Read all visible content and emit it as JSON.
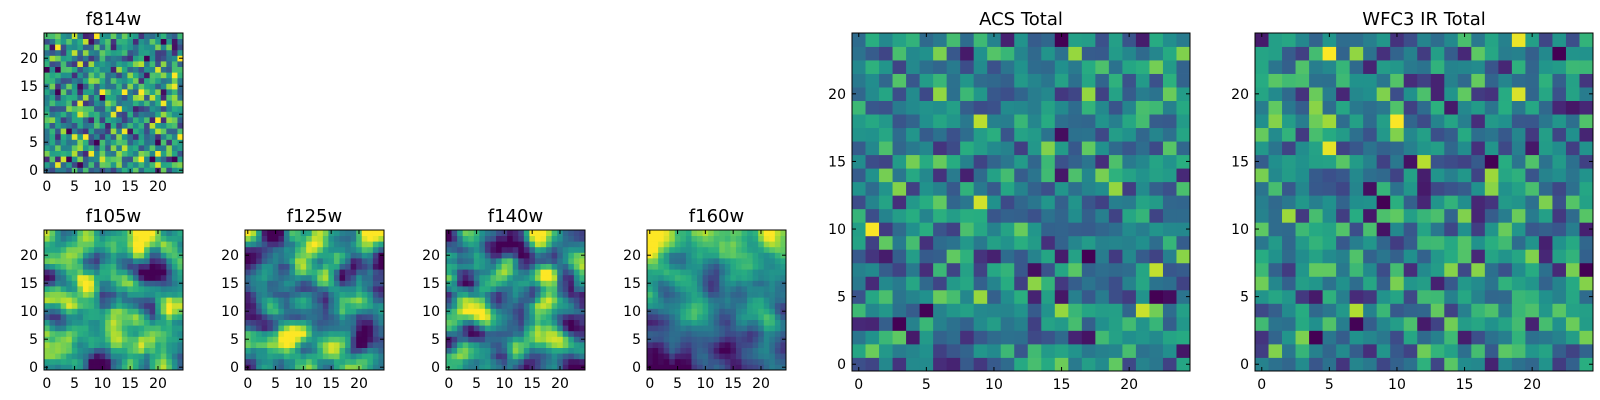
{
  "chart_data": [
    {
      "type": "heatmap",
      "panel": "f814w",
      "title": "f814w",
      "xlabel": "",
      "ylabel": "",
      "grid_size": 25,
      "xlim": [
        0,
        25
      ],
      "ylim": [
        0,
        25
      ],
      "xticks": [
        0,
        5,
        10,
        15,
        20
      ],
      "yticks": [
        0,
        5,
        10,
        15,
        20
      ],
      "colormap": "viridis",
      "texture": "fine pixel noise",
      "seed": 11
    },
    {
      "type": "heatmap",
      "panel": "f105w",
      "title": "f105w",
      "xlabel": "",
      "ylabel": "",
      "grid_size": 25,
      "xlim": [
        0,
        25
      ],
      "ylim": [
        0,
        25
      ],
      "xticks": [
        0,
        5,
        10,
        15,
        20
      ],
      "yticks": [
        0,
        5,
        10,
        15,
        20
      ],
      "colormap": "viridis",
      "texture": "smooth blotches",
      "seed": 23
    },
    {
      "type": "heatmap",
      "panel": "f125w",
      "title": "f125w",
      "xlabel": "",
      "ylabel": "",
      "grid_size": 25,
      "xlim": [
        0,
        25
      ],
      "ylim": [
        0,
        25
      ],
      "xticks": [
        0,
        5,
        10,
        15,
        20
      ],
      "yticks": [
        0,
        5,
        10,
        15,
        20
      ],
      "colormap": "viridis",
      "texture": "smooth blotches",
      "seed": 37
    },
    {
      "type": "heatmap",
      "panel": "f140w",
      "title": "f140w",
      "xlabel": "",
      "ylabel": "",
      "grid_size": 25,
      "xlim": [
        0,
        25
      ],
      "ylim": [
        0,
        25
      ],
      "xticks": [
        0,
        5,
        10,
        15,
        20
      ],
      "yticks": [
        0,
        5,
        10,
        15,
        20
      ],
      "colormap": "viridis",
      "texture": "smooth blotches",
      "seed": 41
    },
    {
      "type": "heatmap",
      "panel": "f160w",
      "title": "f160w",
      "xlabel": "",
      "ylabel": "",
      "grid_size": 25,
      "xlim": [
        0,
        25
      ],
      "ylim": [
        0,
        25
      ],
      "xticks": [
        0,
        5,
        10,
        15,
        20
      ],
      "yticks": [
        0,
        5,
        10,
        15,
        20
      ],
      "colormap": "viridis",
      "texture": "smooth, brighter at top",
      "seed": 53
    },
    {
      "type": "heatmap",
      "panel": "acs-total",
      "title": "ACS Total",
      "xlabel": "",
      "ylabel": "",
      "grid_size": 25,
      "xlim": [
        0,
        25
      ],
      "ylim": [
        0,
        25
      ],
      "xticks": [
        0,
        5,
        10,
        15,
        20
      ],
      "yticks": [
        0,
        5,
        10,
        15,
        20
      ],
      "colormap": "viridis",
      "texture": "pixel noise, mostly green",
      "seed": 67
    },
    {
      "type": "heatmap",
      "panel": "wfc3-ir-total",
      "title": "WFC3 IR Total",
      "xlabel": "",
      "ylabel": "",
      "grid_size": 25,
      "xlim": [
        0,
        25
      ],
      "ylim": [
        0,
        25
      ],
      "xticks": [
        0,
        5,
        10,
        15,
        20
      ],
      "yticks": [
        0,
        5,
        10,
        15,
        20
      ],
      "colormap": "viridis",
      "texture": "pixel noise, mostly green",
      "seed": 79
    }
  ]
}
